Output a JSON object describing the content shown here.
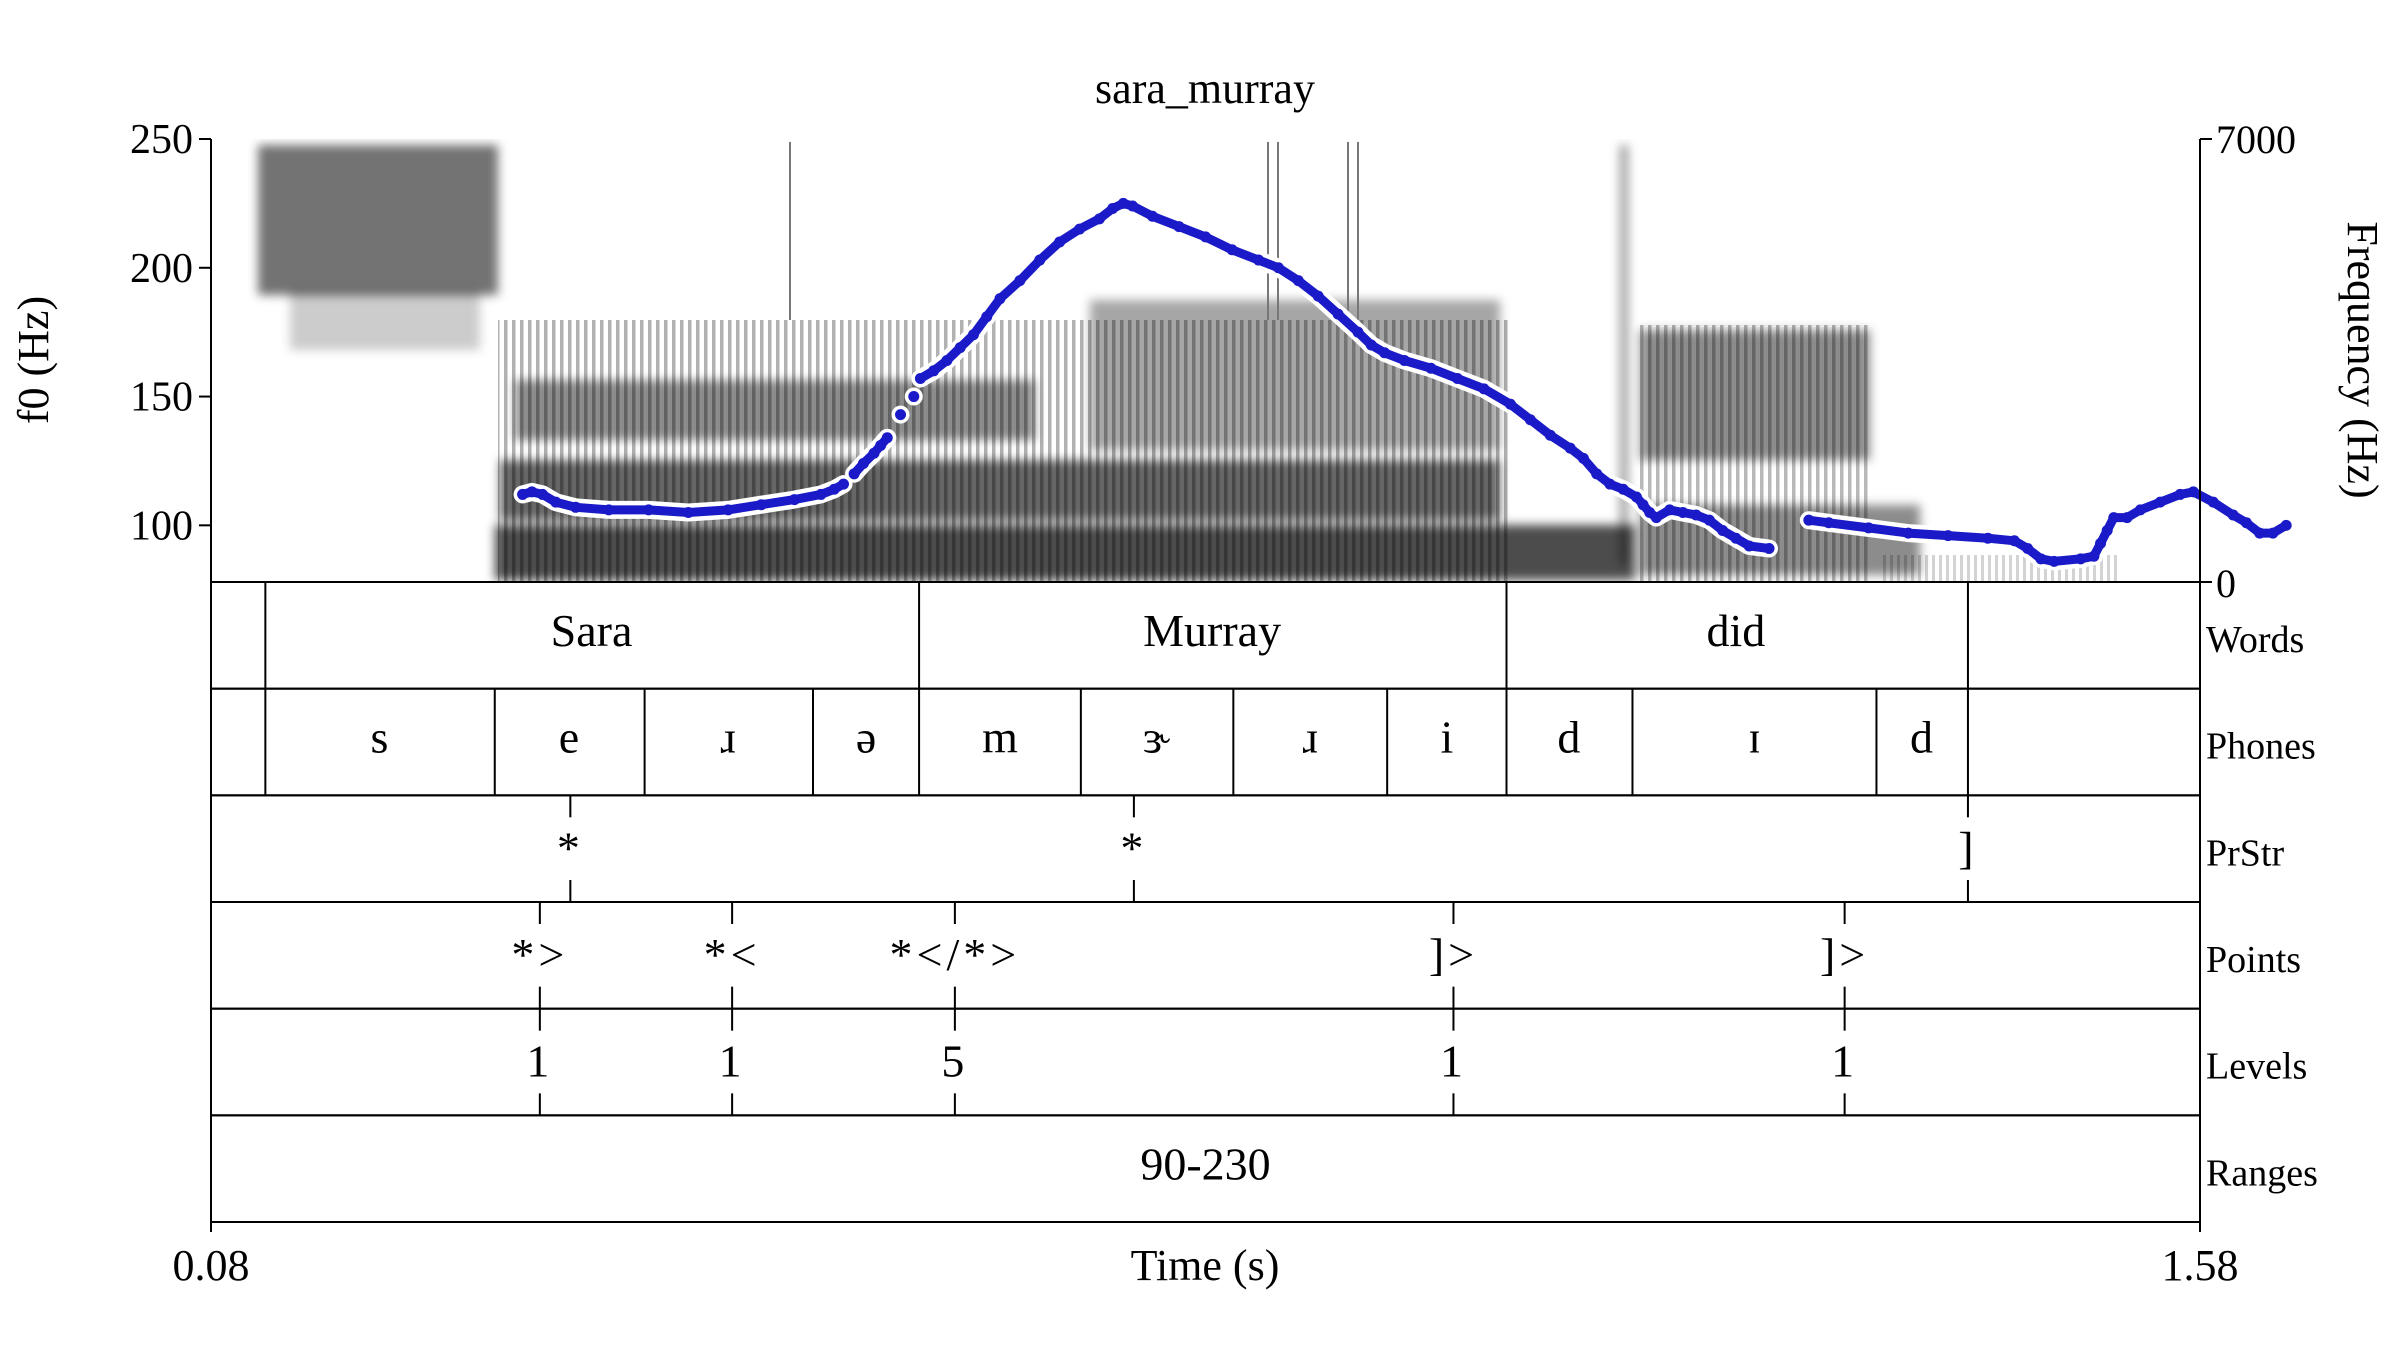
{
  "chart_data": {
    "type": "line",
    "title": "sara_murray",
    "xlabel": "Time (s)",
    "ylabel_left": "f0 (Hz)",
    "ylabel_right": "Frequency (Hz)",
    "xlim": [
      0.08,
      1.58
    ],
    "xtick_labels": [
      "0.08",
      "1.58"
    ],
    "f0_lim": [
      78,
      250
    ],
    "f0_ticks": [
      {
        "value": 100,
        "label": "100"
      },
      {
        "value": 150,
        "label": "150"
      },
      {
        "value": 200,
        "label": "200"
      },
      {
        "value": 250,
        "label": "250"
      }
    ],
    "freq_lim": [
      0,
      7000
    ],
    "freq_tick_labels": [
      "0",
      "7000"
    ],
    "f0_color": "#1a1ac8",
    "series": [
      {
        "values_kind": "f0 contour (Hz over time)",
        "segments": [
          [
            [
              0.315,
              112
            ],
            [
              0.322,
              113
            ],
            [
              0.33,
              112
            ],
            [
              0.34,
              109
            ],
            [
              0.355,
              107
            ],
            [
              0.38,
              106
            ],
            [
              0.41,
              106
            ],
            [
              0.44,
              105
            ],
            [
              0.47,
              106
            ],
            [
              0.495,
              108
            ],
            [
              0.52,
              110
            ],
            [
              0.54,
              112
            ],
            [
              0.55,
              114
            ],
            [
              0.557,
              116
            ]
          ],
          [
            [
              0.565,
              120
            ],
            [
              0.572,
              124
            ],
            [
              0.58,
              128
            ],
            [
              0.585,
              131
            ],
            [
              0.59,
              134
            ]
          ],
          [
            [
              0.6,
              143
            ]
          ],
          [
            [
              0.61,
              150
            ]
          ],
          [
            [
              0.615,
              157
            ],
            [
              0.625,
              160
            ],
            [
              0.635,
              164
            ],
            [
              0.645,
              169
            ],
            [
              0.655,
              174
            ],
            [
              0.665,
              181
            ],
            [
              0.675,
              188
            ],
            [
              0.69,
              195
            ],
            [
              0.705,
              203
            ],
            [
              0.72,
              210
            ],
            [
              0.735,
              215
            ],
            [
              0.75,
              219
            ],
            [
              0.76,
              223
            ],
            [
              0.768,
              225
            ],
            [
              0.775,
              224
            ],
            [
              0.79,
              220
            ],
            [
              0.81,
              216
            ],
            [
              0.83,
              212
            ],
            [
              0.85,
              207
            ],
            [
              0.87,
              203
            ],
            [
              0.885,
              200
            ],
            [
              0.9,
              195
            ],
            [
              0.915,
              189
            ],
            [
              0.93,
              182
            ],
            [
              0.945,
              175
            ],
            [
              0.955,
              170
            ],
            [
              0.965,
              167
            ],
            [
              0.98,
              164
            ],
            [
              1.0,
              161
            ],
            [
              1.02,
              157
            ],
            [
              1.04,
              153
            ],
            [
              1.06,
              147
            ],
            [
              1.075,
              141
            ],
            [
              1.09,
              135
            ],
            [
              1.105,
              130
            ],
            [
              1.115,
              126
            ],
            [
              1.125,
              120
            ],
            [
              1.135,
              116
            ],
            [
              1.145,
              114
            ],
            [
              1.155,
              111
            ],
            [
              1.16,
              108
            ],
            [
              1.165,
              105
            ],
            [
              1.17,
              103
            ],
            [
              1.18,
              106
            ],
            [
              1.19,
              105
            ],
            [
              1.2,
              104
            ],
            [
              1.21,
              102
            ],
            [
              1.22,
              98
            ],
            [
              1.23,
              95
            ],
            [
              1.24,
              92
            ],
            [
              1.255,
              91
            ]
          ],
          [
            [
              1.285,
              102
            ],
            [
              1.3,
              101
            ],
            [
              1.33,
              99
            ],
            [
              1.36,
              97
            ],
            [
              1.39,
              96
            ],
            [
              1.42,
              95
            ],
            [
              1.44,
              94
            ],
            [
              1.45,
              91
            ],
            [
              1.46,
              87
            ],
            [
              1.47,
              86
            ],
            [
              1.49,
              87
            ],
            [
              1.5,
              88
            ],
            [
              1.505,
              93
            ],
            [
              1.51,
              98
            ],
            [
              1.515,
              103
            ],
            [
              1.525,
              103
            ],
            [
              1.535,
              106
            ],
            [
              1.55,
              109
            ],
            [
              1.565,
              112
            ],
            [
              1.575,
              113
            ],
            [
              1.59,
              109
            ],
            [
              1.605,
              104
            ],
            [
              1.615,
              101
            ],
            [
              1.625,
              97
            ],
            [
              1.635,
              97
            ],
            [
              1.645,
              100
            ]
          ]
        ]
      }
    ]
  },
  "tiers": [
    {
      "name": "Words",
      "type": "interval",
      "boundaries": [
        0.121,
        0.614,
        1.057,
        1.405
      ],
      "labels": [
        {
          "text": "Sara",
          "t": 0.367
        },
        {
          "text": "Murray",
          "t": 0.835
        },
        {
          "text": "did",
          "t": 1.23
        }
      ]
    },
    {
      "name": "Phones",
      "type": "interval",
      "boundaries": [
        0.121,
        0.294,
        0.407,
        0.534,
        0.614,
        0.736,
        0.851,
        0.967,
        1.057,
        1.152,
        1.336,
        1.405
      ],
      "labels": [
        {
          "text": "s",
          "t": 0.207
        },
        {
          "text": "e",
          "t": 0.35
        },
        {
          "text": "ɹ",
          "t": 0.47
        },
        {
          "text": "ə",
          "t": 0.574
        },
        {
          "text": "m",
          "t": 0.675
        },
        {
          "text": "ɝ",
          "t": 0.793
        },
        {
          "text": "ɹ",
          "t": 0.909
        },
        {
          "text": "i",
          "t": 1.012
        },
        {
          "text": "d",
          "t": 1.104
        },
        {
          "text": "ɪ",
          "t": 1.244
        },
        {
          "text": "d",
          "t": 1.37
        }
      ]
    },
    {
      "name": "PrStr",
      "type": "point",
      "points": [
        {
          "text": "*",
          "t": 0.351
        },
        {
          "text": "*",
          "t": 0.776
        },
        {
          "text": "]",
          "t": 1.405
        }
      ]
    },
    {
      "name": "Points",
      "type": "point",
      "points": [
        {
          "text": "*>",
          "t": 0.328
        },
        {
          "text": "*<",
          "t": 0.473
        },
        {
          "text": "*</*>",
          "t": 0.641
        },
        {
          "text": "]>",
          "t": 1.017
        },
        {
          "text": "]>",
          "t": 1.312
        }
      ]
    },
    {
      "name": "Levels",
      "type": "point",
      "points": [
        {
          "text": "1",
          "t": 0.328
        },
        {
          "text": "1",
          "t": 0.473
        },
        {
          "text": "5",
          "t": 0.641
        },
        {
          "text": "1",
          "t": 1.017
        },
        {
          "text": "1",
          "t": 1.312
        }
      ]
    },
    {
      "name": "Ranges",
      "type": "interval",
      "boundaries": [],
      "labels": [
        {
          "text": "90-230",
          "t": 0.83
        }
      ]
    }
  ]
}
